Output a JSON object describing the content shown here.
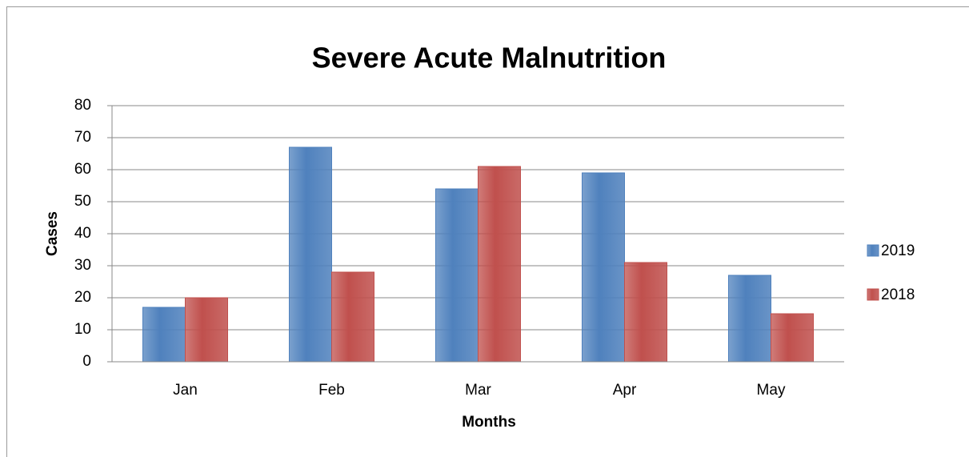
{
  "chart_data": {
    "type": "bar",
    "title": "Severe Acute Malnutrition",
    "x_label": "Months",
    "y_label": "Cases",
    "categories": [
      "Jan",
      "Feb",
      "Mar",
      "Apr",
      "May"
    ],
    "series": [
      {
        "name": "2019",
        "color": "#4f81bd",
        "values": [
          17,
          67,
          54,
          59,
          27
        ]
      },
      {
        "name": "2018",
        "color": "#c0504d",
        "values": [
          20,
          28,
          61,
          31,
          15
        ]
      }
    ],
    "ylim": [
      0,
      80
    ],
    "yticks": [
      0,
      10,
      20,
      30,
      40,
      50,
      60,
      70,
      80
    ],
    "grid": true,
    "legend": "right"
  }
}
